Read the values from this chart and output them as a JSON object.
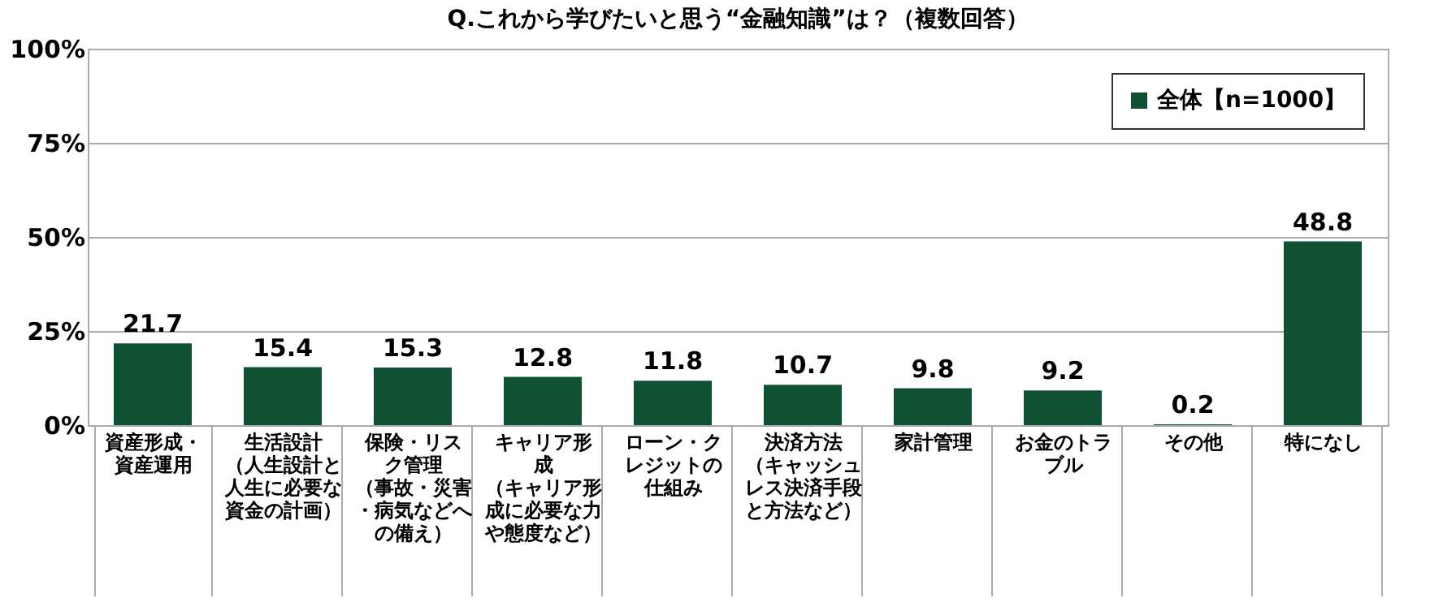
{
  "chart_data": {
    "type": "bar",
    "title": "Q.これから学びたいと思う“金融知識”は？（複数回答）",
    "categories": [
      "資産形成・資産運用",
      "生活設計（人生設計と人生に必要な資金の計画）",
      "保険・リスク管理（事故・災害・病気などへの備え）",
      "キャリア形成（キャリア形成に必要な力や態度など）",
      "ローン・クレジットの仕組み",
      "決済方法（キャッシュレス決済手段と方法など）",
      "家計管理",
      "お金のトラブル",
      "その他",
      "特になし"
    ],
    "series": [
      {
        "name": "全体【n=1000】",
        "color": "#0f5132",
        "values": [
          21.7,
          15.4,
          15.3,
          12.8,
          11.8,
          10.7,
          9.8,
          9.2,
          0.2,
          48.8
        ]
      }
    ],
    "ylim": [
      0,
      100
    ],
    "yticks": [
      {
        "value": 0,
        "label": "0%"
      },
      {
        "value": 25,
        "label": "25%"
      },
      {
        "value": 50,
        "label": "50%"
      },
      {
        "value": 75,
        "label": "75%"
      },
      {
        "value": 100,
        "label": "100%"
      }
    ],
    "grid": "y",
    "legend": "top right",
    "data_labels": true
  }
}
